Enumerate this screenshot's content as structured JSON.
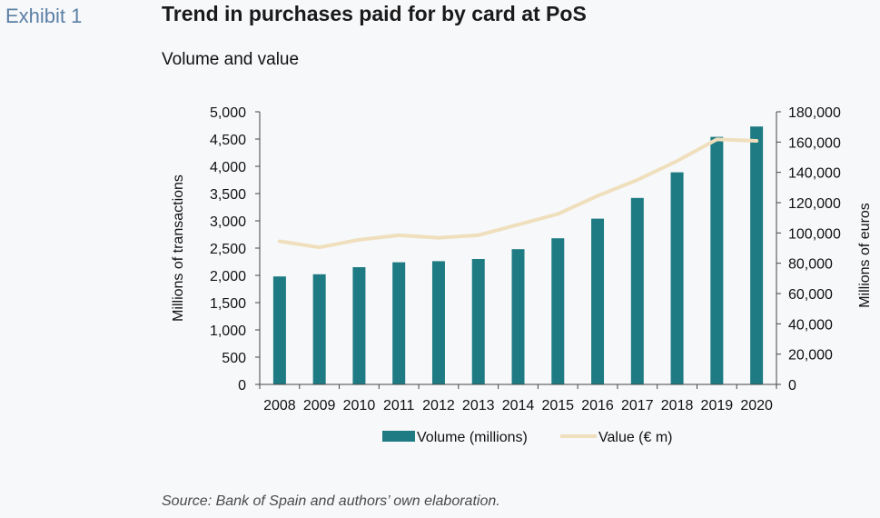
{
  "header": {
    "exhibit": "Exhibit 1",
    "title": "Trend in purchases paid for by card at PoS",
    "subtitle": "Volume and value"
  },
  "footer": {
    "source": "Source: Bank of Spain and authors’ own elaboration."
  },
  "colors": {
    "bar": "#1e7b83",
    "line": "#efdfbd",
    "axis": "#444444",
    "background": "#f7f8fa"
  },
  "chart_data": {
    "type": "bar",
    "categories": [
      "2008",
      "2009",
      "2010",
      "2011",
      "2012",
      "2013",
      "2014",
      "2015",
      "2016",
      "2017",
      "2018",
      "2019",
      "2020"
    ],
    "series": [
      {
        "name": "Volume (millions)",
        "type": "bar",
        "axis": "left",
        "values": [
          1980,
          2020,
          2150,
          2240,
          2260,
          2300,
          2480,
          2680,
          3040,
          3420,
          3890,
          4540,
          4730
        ]
      },
      {
        "name": "Value (€ m)",
        "type": "line",
        "axis": "right",
        "values": [
          94500,
          90500,
          95500,
          98500,
          96800,
          98500,
          105500,
          112500,
          124500,
          135000,
          147500,
          161800,
          160800
        ]
      }
    ],
    "ylabel": "Millions of transactions",
    "y2label": "Millions of euros",
    "ylim": [
      0,
      5000
    ],
    "y2lim": [
      0,
      180000
    ],
    "yticks": [
      "5,000",
      "4,500",
      "4,000",
      "3,500",
      "3,000",
      "2,500",
      "2,000",
      "1,500",
      "1,000",
      "500",
      "0"
    ],
    "y2ticks": [
      "180,000",
      "160,000",
      "140,000",
      "120,000",
      "100,000",
      "80,000",
      "60,000",
      "40,000",
      "20,000",
      "0"
    ],
    "grid": false,
    "legend_position": "bottom"
  }
}
